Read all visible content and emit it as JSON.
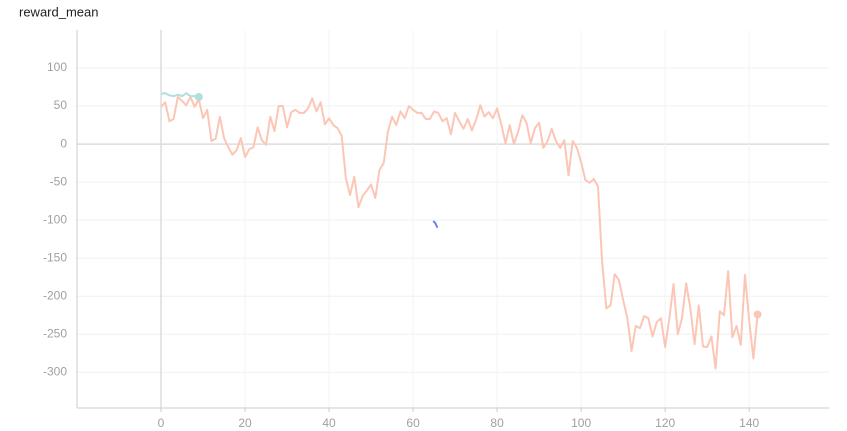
{
  "chart_data": {
    "type": "line",
    "title": "reward_mean",
    "xlim": [
      -20,
      159
    ],
    "ylim": [
      -347,
      150
    ],
    "xticks": [
      0,
      20,
      40,
      60,
      80,
      100,
      120,
      140
    ],
    "yticks": [
      100,
      50,
      0,
      -50,
      -100,
      -150,
      -200,
      -250,
      -300
    ],
    "grid": true,
    "end_marker": true,
    "series": [
      {
        "color": "#fcc6b6",
        "x": [
          0,
          1,
          2,
          3,
          4,
          5,
          6,
          7,
          8,
          9,
          10,
          11,
          12,
          13,
          14,
          15,
          16,
          17,
          18,
          19,
          20,
          21,
          22,
          23,
          24,
          25,
          26,
          27,
          28,
          29,
          30,
          31,
          32,
          33,
          34,
          35,
          36,
          37,
          38,
          39,
          40,
          41,
          42,
          43,
          44,
          45,
          46,
          47,
          48,
          49,
          50,
          51,
          52,
          53,
          54,
          55,
          56,
          57,
          58,
          59,
          60,
          61,
          62,
          63,
          64,
          65,
          66,
          67,
          68,
          69,
          70,
          71,
          72,
          73,
          74,
          75,
          76,
          77,
          78,
          79,
          80,
          81,
          82,
          83,
          84,
          85,
          86,
          87,
          88,
          89,
          90,
          91,
          92,
          93,
          94,
          95,
          96,
          97,
          98,
          99,
          100,
          101,
          102,
          103,
          104,
          105,
          106,
          107,
          108,
          109,
          110,
          111,
          112,
          113,
          114,
          115,
          116,
          117,
          118,
          119,
          120,
          121,
          122,
          123,
          124,
          125,
          126,
          127,
          128,
          129,
          130,
          131,
          132,
          133,
          134,
          135,
          136,
          137,
          138,
          139,
          140,
          141,
          142
        ],
        "values": [
          49,
          55,
          30,
          33,
          62,
          57,
          51,
          62,
          49,
          59,
          34,
          45,
          4,
          7,
          36,
          8,
          -4,
          -14,
          -8,
          8,
          -17,
          -7,
          -4,
          22,
          5,
          -1,
          36,
          17,
          50,
          50,
          22,
          42,
          45,
          41,
          41,
          47,
          60,
          43,
          55,
          26,
          34,
          25,
          21,
          11,
          -45,
          -67,
          -43,
          -83,
          -68,
          -61,
          -53,
          -71,
          -34,
          -25,
          16,
          36,
          25,
          43,
          34,
          50,
          45,
          41,
          41,
          33,
          33,
          43,
          41,
          30,
          34,
          13,
          41,
          30,
          20,
          33,
          18,
          32,
          51,
          36,
          42,
          34,
          47,
          26,
          1,
          25,
          0,
          16,
          38,
          28,
          1,
          21,
          28,
          -5,
          4,
          20,
          4,
          -5,
          5,
          -41,
          4,
          -5,
          -24,
          -47,
          -51,
          -46,
          -55,
          -155,
          -216,
          -212,
          -171,
          -179,
          -205,
          -229,
          -272,
          -239,
          -242,
          -226,
          -229,
          -253,
          -234,
          -229,
          -267,
          -229,
          -184,
          -250,
          -229,
          -183,
          -216,
          -263,
          -212,
          -266,
          -267,
          -253,
          -295,
          -220,
          -225,
          -167,
          -254,
          -239,
          -264,
          -172,
          -232,
          -282,
          -224
        ]
      },
      {
        "color": "#b2dfdb",
        "x": [
          0,
          1,
          2,
          3,
          4,
          5,
          6,
          7,
          8,
          9
        ],
        "values": [
          66,
          67,
          64,
          63,
          65,
          63,
          67,
          63,
          63,
          62
        ]
      },
      {
        "color": "#6e7ff3",
        "x": [
          64.8,
          65.3,
          65.8
        ],
        "values": [
          -101,
          -104,
          -110
        ]
      }
    ]
  }
}
